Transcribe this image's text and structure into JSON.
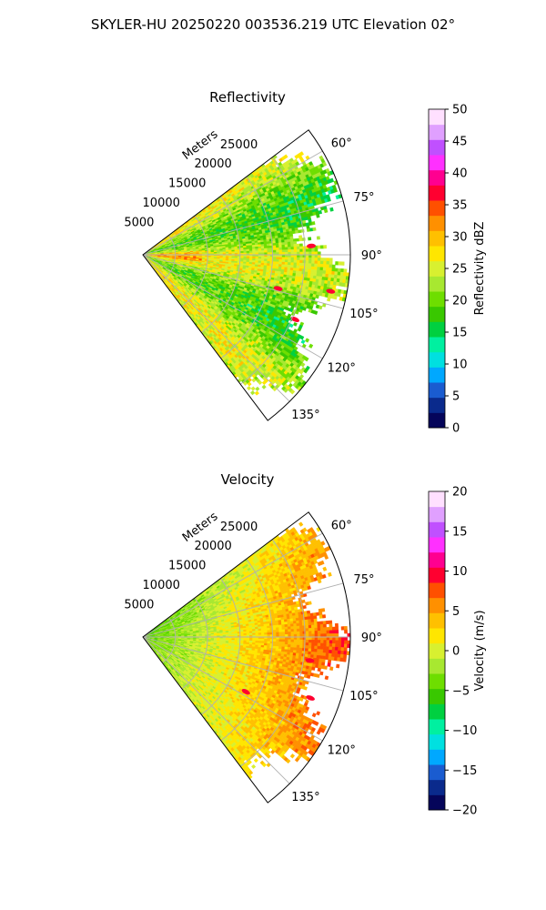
{
  "figure": {
    "suptitle": "SKYLER-HU  20250220  003536.219 UTC Elevation 02°"
  },
  "chart_data": [
    {
      "type": "heatmap",
      "subtype": "polar-sector (PPI)",
      "title": "Reflectivity",
      "radial_label": "Meters",
      "radial_ticks": [
        "5000",
        "10000",
        "15000",
        "20000",
        "25000"
      ],
      "radial_tick_values": [
        5000,
        10000,
        15000,
        20000,
        25000
      ],
      "rlim": [
        0,
        32000
      ],
      "azimuth_ticks": [
        "60°",
        "75°",
        "90°",
        "105°",
        "120°",
        "135°"
      ],
      "azimuth_tick_values": [
        60,
        75,
        90,
        105,
        120,
        135
      ],
      "azimuth_range": [
        53,
        143
      ],
      "grid": true,
      "colorbar": {
        "label": "Reflectivity dBZ",
        "ticks": [
          "0",
          "5",
          "10",
          "15",
          "20",
          "25",
          "30",
          "35",
          "40",
          "45",
          "50"
        ],
        "range": [
          0,
          50
        ],
        "colors": [
          "#05055a",
          "#0a2a8c",
          "#1a5cd0",
          "#00a8ff",
          "#00e0e0",
          "#00f0a0",
          "#00d040",
          "#39c800",
          "#6ede00",
          "#a8e830",
          "#d8f030",
          "#ffe600",
          "#ffc000",
          "#ff9000",
          "#ff5000",
          "#ff0030",
          "#ff0090",
          "#ff30ff",
          "#c050ff",
          "#e0a0ff",
          "#ffe0ff"
        ]
      },
      "field_note": "dominant 20–27 dBZ (green–yellow) with isolated 35–40 dBZ cells",
      "hotspots": [
        {
          "az": 87,
          "range": 26000,
          "value": 38
        },
        {
          "az": 101,
          "range": 29500,
          "value": 38
        },
        {
          "az": 104,
          "range": 21500,
          "value": 36
        },
        {
          "az": 113,
          "range": 25500,
          "value": 38
        }
      ]
    },
    {
      "type": "heatmap",
      "subtype": "polar-sector (PPI)",
      "title": "Velocity",
      "radial_label": "Meters",
      "radial_ticks": [
        "5000",
        "10000",
        "15000",
        "20000",
        "25000"
      ],
      "radial_tick_values": [
        5000,
        10000,
        15000,
        20000,
        25000
      ],
      "rlim": [
        0,
        32000
      ],
      "azimuth_ticks": [
        "60°",
        "75°",
        "90°",
        "105°",
        "120°",
        "135°"
      ],
      "azimuth_tick_values": [
        60,
        75,
        90,
        105,
        120,
        135
      ],
      "azimuth_range": [
        53,
        143
      ],
      "grid": true,
      "colorbar": {
        "label": "Velocity (m/s)",
        "ticks": [
          "−20",
          "−15",
          "−10",
          "−5",
          "0",
          "5",
          "10",
          "15",
          "20"
        ],
        "range": [
          -20,
          20
        ],
        "colors": [
          "#05055a",
          "#0a2a8c",
          "#1a5cd0",
          "#00a8ff",
          "#00e0e0",
          "#00f0a0",
          "#00d040",
          "#39c800",
          "#6ede00",
          "#a8e830",
          "#d8f030",
          "#ffe600",
          "#ffc000",
          "#ff9000",
          "#ff5000",
          "#ff0030",
          "#ff0090",
          "#ff30ff",
          "#c050ff",
          "#e0a0ff",
          "#ffe0ff"
        ]
      },
      "field_note": "about −4 m/s (green) near radar in the upper sector, rising to +4–8 m/s (orange) at far range on the east side",
      "hotspots": [
        {
          "az": 98,
          "range": 26000,
          "value": 10
        },
        {
          "az": 110,
          "range": 27500,
          "value": 10
        },
        {
          "az": 118,
          "range": 18000,
          "value": 9
        }
      ]
    }
  ]
}
